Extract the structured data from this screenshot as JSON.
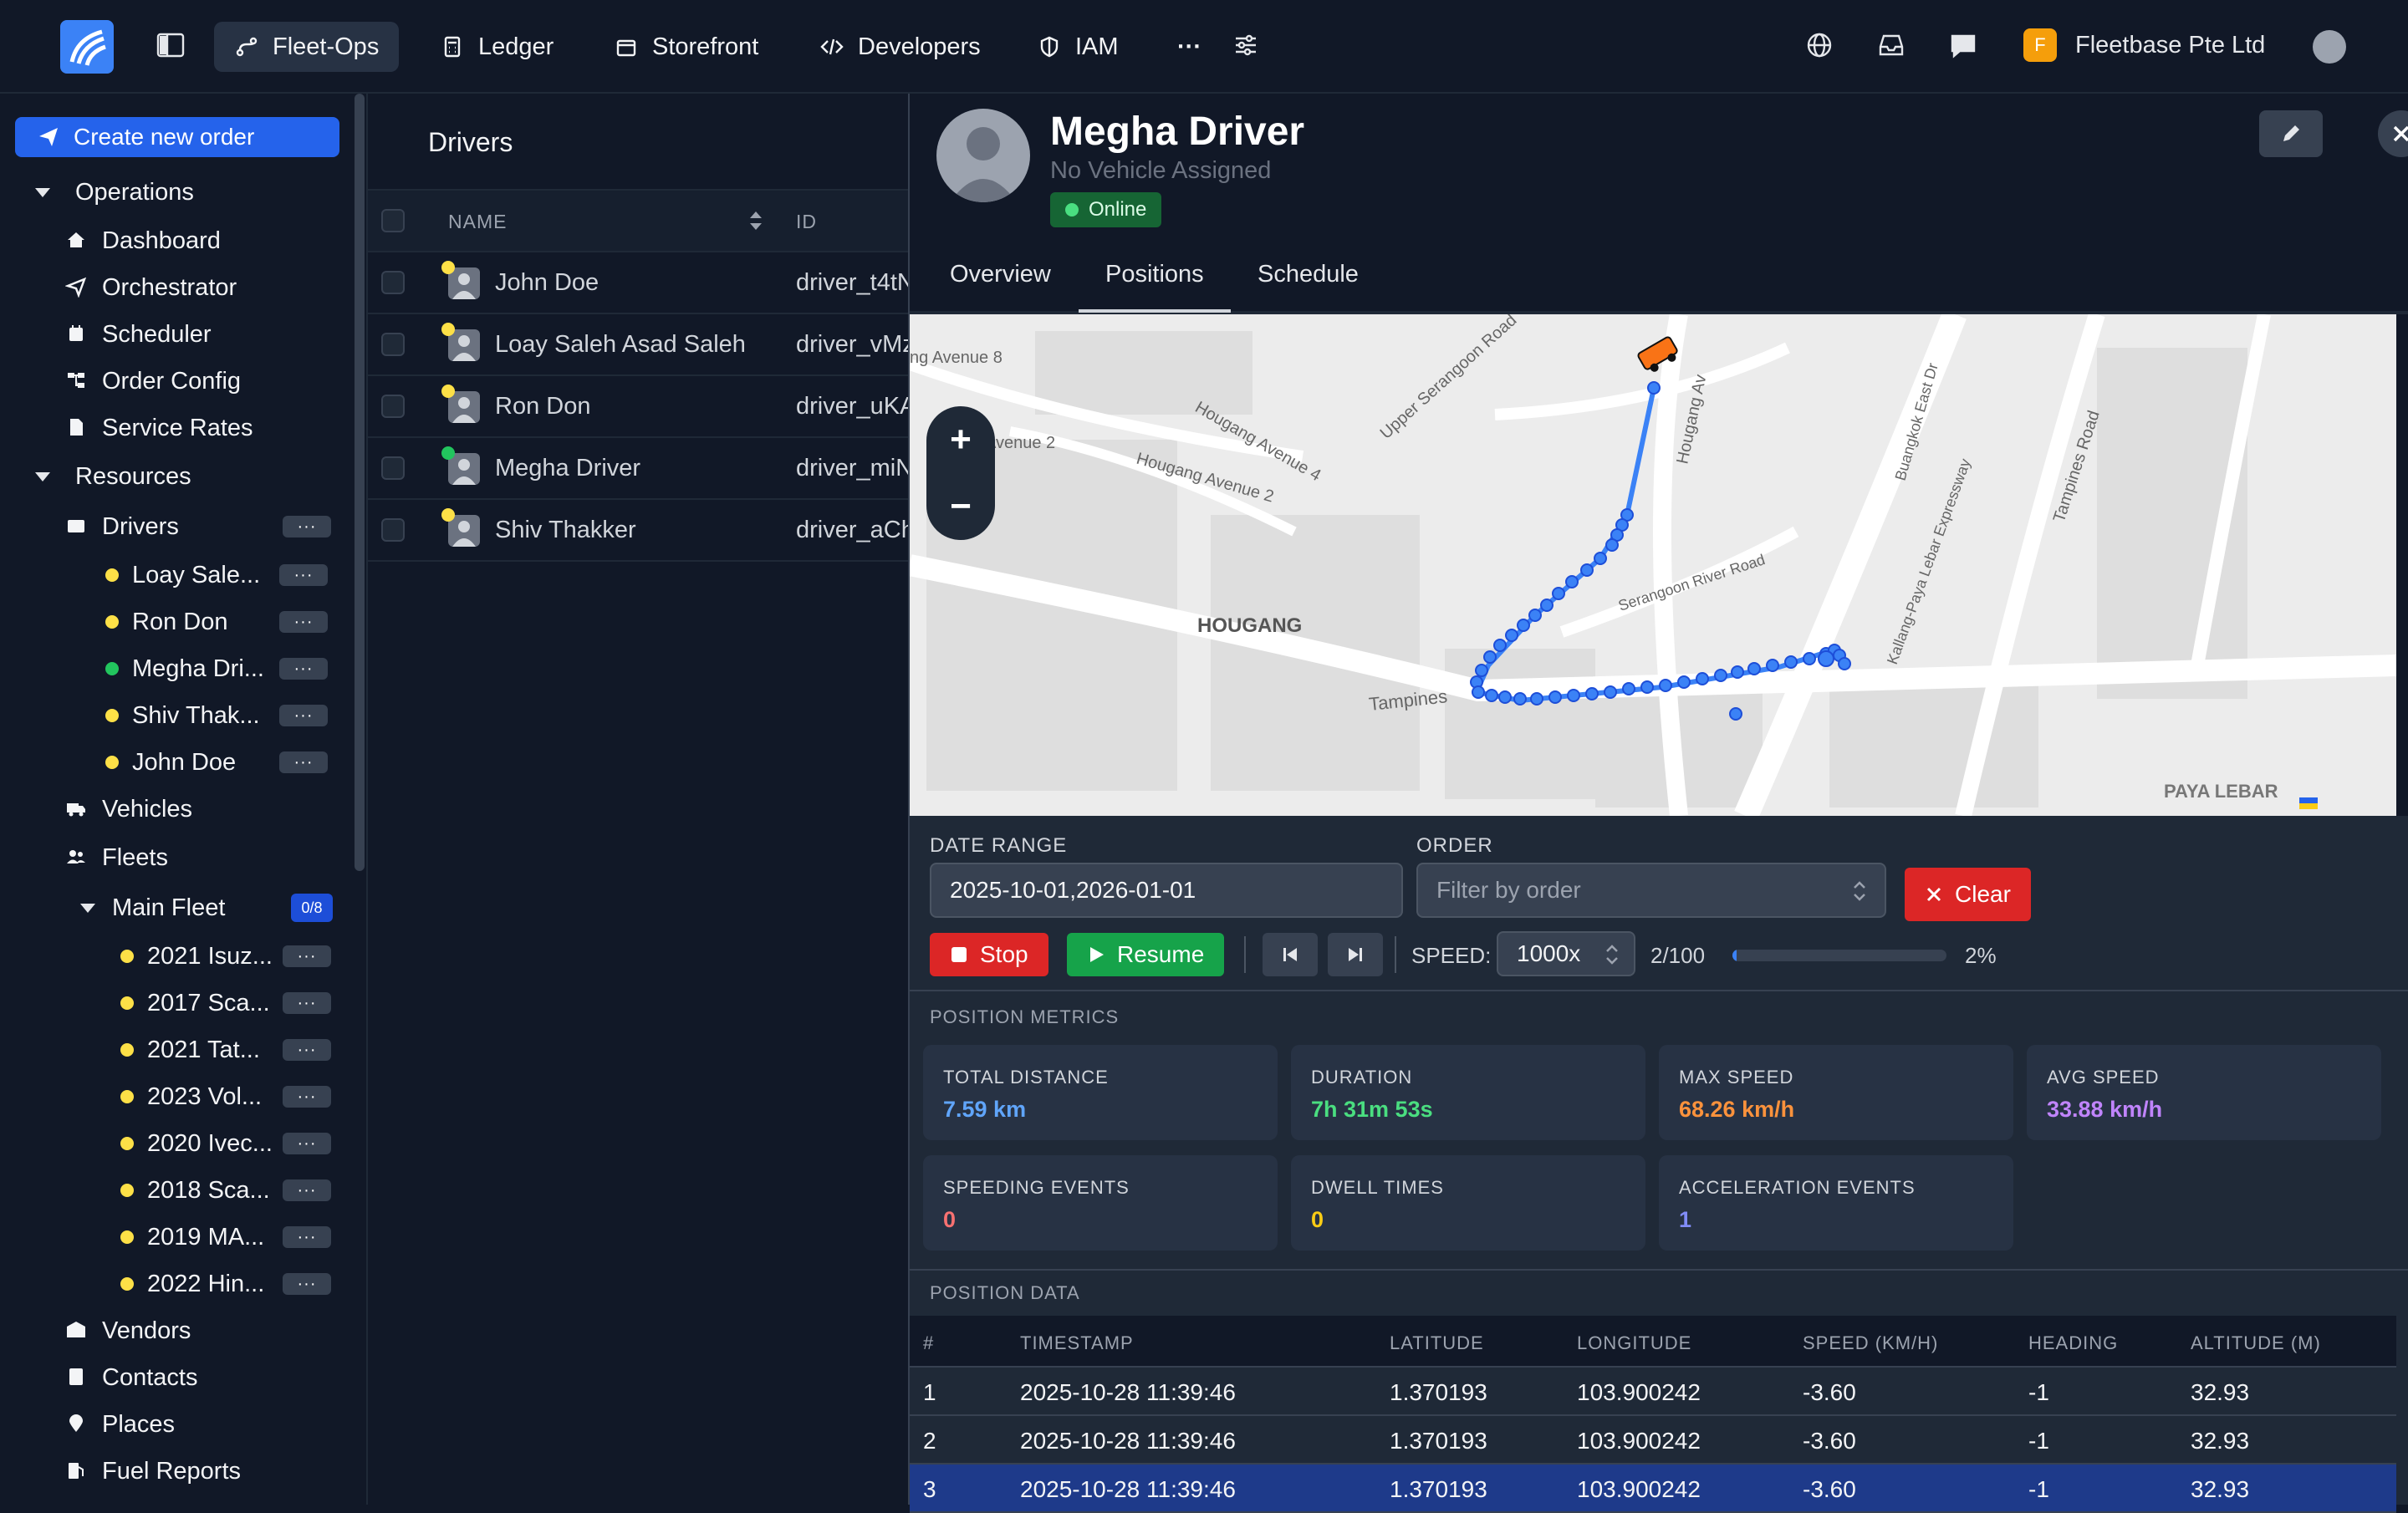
{
  "topbar": {
    "nav": [
      {
        "label": "Fleet-Ops",
        "icon": "route-icon"
      },
      {
        "label": "Ledger",
        "icon": "calculator-icon"
      },
      {
        "label": "Storefront",
        "icon": "store-icon"
      },
      {
        "label": "Developers",
        "icon": "code-icon"
      },
      {
        "label": "IAM",
        "icon": "shield-icon"
      }
    ],
    "more": "···",
    "org_initial": "F",
    "org_name": "Fleetbase Pte Ltd"
  },
  "sidebar": {
    "create_label": "Create new order",
    "operations_label": "Operations",
    "operations": [
      "Dashboard",
      "Orchestrator",
      "Scheduler",
      "Order Config",
      "Service Rates"
    ],
    "resources_label": "Resources",
    "drivers_label": "Drivers",
    "drivers": [
      {
        "name": "Loay Sale...",
        "status": "yellow"
      },
      {
        "name": "Ron Don",
        "status": "yellow"
      },
      {
        "name": "Megha Dri...",
        "status": "green"
      },
      {
        "name": "Shiv Thak...",
        "status": "yellow"
      },
      {
        "name": "John Doe",
        "status": "yellow"
      }
    ],
    "vehicles_label": "Vehicles",
    "fleets_label": "Fleets",
    "main_fleet_label": "Main Fleet",
    "main_fleet_badge": "0/8",
    "fleet_vehicles": [
      "2021 Isuz...",
      "2017 Sca...",
      "2021 Tat...",
      "2023 Vol...",
      "2020 Ivec...",
      "2018 Sca...",
      "2019 MA...",
      "2022 Hin..."
    ],
    "bottom": [
      "Vendors",
      "Contacts",
      "Places",
      "Fuel Reports"
    ],
    "more_label": "···"
  },
  "list": {
    "title": "Drivers",
    "col_name": "NAME",
    "col_id": "ID",
    "rows": [
      {
        "name": "John Doe",
        "id": "driver_t4tN",
        "status": "yellow"
      },
      {
        "name": "Loay Saleh Asad Saleh",
        "id": "driver_vMz",
        "status": "yellow"
      },
      {
        "name": "Ron Don",
        "id": "driver_uKA",
        "status": "yellow"
      },
      {
        "name": "Megha Driver",
        "id": "driver_miN",
        "status": "green"
      },
      {
        "name": "Shiv Thakker",
        "id": "driver_aCh",
        "status": "yellow"
      }
    ]
  },
  "detail": {
    "name": "Megha Driver",
    "vehicle": "No Vehicle Assigned",
    "status": "Online",
    "tabs": [
      "Overview",
      "Positions",
      "Schedule"
    ],
    "active_tab": "Positions",
    "map_labels": {
      "hougang": "HOUGANG",
      "paya_lebar": "PAYA LEBAR",
      "tampines": "Tampines",
      "avenue8": "ng Avenue 8",
      "avenue2a": "Avenue 2",
      "avenue2b": "Hougang Avenue 2",
      "avenue4": "Hougang Avenue 4",
      "upper_serangoon": "Upper Serangoon Road",
      "serangoon_river": "Serangoon River Road",
      "kpe": "Kallang-Paya Lebar Expressway",
      "tampines_road": "Tampines Road",
      "buangkok": "Buangkok East Dr",
      "hougang_ave": "Hougang Av"
    },
    "zoom_in": "+",
    "zoom_out": "−",
    "filters": {
      "date_label": "DATE RANGE",
      "date_value": "2025-10-01,2026-01-01",
      "order_label": "ORDER",
      "order_placeholder": "Filter by order",
      "clear": "Clear",
      "stop": "Stop",
      "resume": "Resume",
      "speed_label": "SPEED:",
      "speed_value": "1000x",
      "progress_text": "2/100",
      "progress_pct": "2%",
      "progress_fraction": 0.02
    },
    "metrics_title": "POSITION METRICS",
    "metrics": [
      {
        "label": "TOTAL DISTANCE",
        "value": "7.59 km",
        "color": "#60a5fa"
      },
      {
        "label": "DURATION",
        "value": "7h 31m 53s",
        "color": "#4ade80"
      },
      {
        "label": "MAX SPEED",
        "value": "68.26 km/h",
        "color": "#fb923c"
      },
      {
        "label": "AVG SPEED",
        "value": "33.88 km/h",
        "color": "#c084fc"
      },
      {
        "label": "SPEEDING EVENTS",
        "value": "0",
        "color": "#f87171"
      },
      {
        "label": "DWELL TIMES",
        "value": "0",
        "color": "#facc15"
      },
      {
        "label": "ACCELERATION EVENTS",
        "value": "1",
        "color": "#818cf8"
      }
    ],
    "data_title": "POSITION DATA",
    "table": {
      "headers": [
        "#",
        "TIMESTAMP",
        "LATITUDE",
        "LONGITUDE",
        "SPEED (KM/H)",
        "HEADING",
        "ALTITUDE (M)"
      ],
      "rows": [
        [
          "1",
          "2025-10-28 11:39:46",
          "1.370193",
          "103.900242",
          "-3.60",
          "-1",
          "32.93"
        ],
        [
          "2",
          "2025-10-28 11:39:46",
          "1.370193",
          "103.900242",
          "-3.60",
          "-1",
          "32.93"
        ],
        [
          "3",
          "2025-10-28 11:39:46",
          "1.370193",
          "103.900242",
          "-3.60",
          "-1",
          "32.93"
        ]
      ],
      "selected_row": 2
    }
  }
}
